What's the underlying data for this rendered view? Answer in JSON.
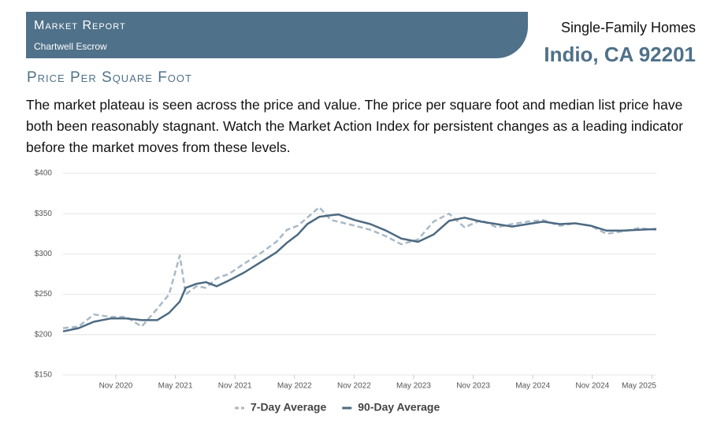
{
  "header": {
    "title": "Market Report",
    "company": "Chartwell Escrow",
    "property_type": "Single-Family Homes",
    "location": "Indio, CA 92201"
  },
  "section_title": "Price Per Square Foot",
  "description": "The market plateau is seen across the price and value. The price per square foot and median list price have both been reasonably stagnant. Watch the Market Action Index for persistent changes as a leading indicator before the market moves from these levels.",
  "chart_data": {
    "type": "line",
    "x": [
      2020.39,
      2020.52,
      2020.65,
      2020.79,
      2020.92,
      2021.05,
      2021.18,
      2021.28,
      2021.37,
      2021.42,
      2021.51,
      2021.59,
      2021.68,
      2021.78,
      2021.91,
      2022.04,
      2022.18,
      2022.27,
      2022.36,
      2022.44,
      2022.54,
      2022.64,
      2022.7,
      2022.84,
      2022.97,
      2023.1,
      2023.23,
      2023.37,
      2023.5,
      2023.63,
      2023.76,
      2023.9,
      2024.03,
      2024.16,
      2024.29,
      2024.42,
      2024.56,
      2024.69,
      2024.82,
      2024.95,
      2025.09,
      2025.22,
      2025.37
    ],
    "series": [
      {
        "name": "7-Day Average",
        "color": "#a9b9c7",
        "dashed": true,
        "values": [
          208,
          210,
          225,
          222,
          222,
          210,
          232,
          250,
          298,
          250,
          260,
          258,
          270,
          275,
          288,
          300,
          315,
          330,
          335,
          345,
          358,
          342,
          340,
          335,
          330,
          322,
          312,
          318,
          340,
          350,
          333,
          342,
          333,
          337,
          340,
          342,
          335,
          338,
          335,
          325,
          328,
          332,
          330
        ]
      },
      {
        "name": "90-Day Average",
        "color": "#4d6a82",
        "dashed": false,
        "values": [
          204,
          208,
          216,
          220,
          220,
          218,
          218,
          227,
          241,
          258,
          263,
          265,
          260,
          267,
          277,
          289,
          302,
          314,
          324,
          337,
          346,
          348,
          349,
          342,
          337,
          329,
          319,
          315,
          324,
          341,
          345,
          340,
          337,
          334,
          337,
          340,
          337,
          338,
          335,
          329,
          329,
          330,
          331
        ]
      }
    ],
    "xlim": [
      2020.39,
      2025.37
    ],
    "xticks": [
      {
        "value": 2020.833,
        "label": "Nov 2020"
      },
      {
        "value": 2021.333,
        "label": "May 2021"
      },
      {
        "value": 2021.833,
        "label": "Nov 2021"
      },
      {
        "value": 2022.333,
        "label": "May 2022"
      },
      {
        "value": 2022.833,
        "label": "Nov 2022"
      },
      {
        "value": 2023.333,
        "label": "May 2023"
      },
      {
        "value": 2023.833,
        "label": "Nov 2023"
      },
      {
        "value": 2024.333,
        "label": "May 2024"
      },
      {
        "value": 2024.833,
        "label": "Nov 2024"
      },
      {
        "value": 2025.333,
        "label": "May 2025"
      }
    ],
    "ylim": [
      150,
      400
    ],
    "yticks": [
      {
        "value": 150,
        "label": "$150"
      },
      {
        "value": 200,
        "label": "$200"
      },
      {
        "value": 250,
        "label": "$250"
      },
      {
        "value": 300,
        "label": "$300"
      },
      {
        "value": 350,
        "label": "$350"
      },
      {
        "value": 400,
        "label": "$400"
      }
    ],
    "grid": true,
    "legend": "bottom"
  }
}
